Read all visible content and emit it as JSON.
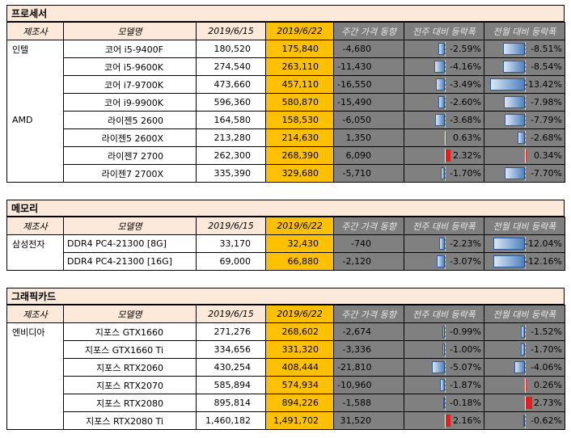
{
  "headers": [
    "제조사",
    "모델명",
    "2019/6/15",
    "2019/6/22",
    "주간 가격 동향",
    "전주 대비 등락폭",
    "전월 대비 등락폭"
  ],
  "sections": [
    {
      "title": "프로세서",
      "rows": [
        {
          "maker": "인텔",
          "model": "코어 i5-9400F",
          "p1": "180,520",
          "p2": "175,840",
          "weekly": "-4,680",
          "wow": "-2.59%",
          "mom": "-8.51%",
          "wow_v": -2.59,
          "mom_v": -8.51
        },
        {
          "maker": "",
          "model": "코어 i5-9600K",
          "p1": "274,540",
          "p2": "263,110",
          "weekly": "-11,430",
          "wow": "-4.16%",
          "mom": "-8.54%",
          "wow_v": -4.16,
          "mom_v": -8.54
        },
        {
          "maker": "",
          "model": "코어 i7-9700K",
          "p1": "473,660",
          "p2": "457,110",
          "weekly": "-16,550",
          "wow": "-3.49%",
          "mom": "-13.42%",
          "wow_v": -3.49,
          "mom_v": -13.42
        },
        {
          "maker": "",
          "model": "코어 i9-9900K",
          "p1": "596,360",
          "p2": "580,870",
          "weekly": "-15,490",
          "wow": "-2.60%",
          "mom": "-7.98%",
          "wow_v": -2.6,
          "mom_v": -7.98
        },
        {
          "maker": "AMD",
          "model": "라이젠5 2600",
          "p1": "164,580",
          "p2": "158,530",
          "weekly": "-6,050",
          "wow": "-3.68%",
          "mom": "-7.79%",
          "wow_v": -3.68,
          "mom_v": -7.79
        },
        {
          "maker": "",
          "model": "라이젠5 2600X",
          "p1": "213,280",
          "p2": "214,630",
          "weekly": "1,350",
          "wow": "0.63%",
          "mom": "-2.68%",
          "wow_v": 0.63,
          "mom_v": -2.68
        },
        {
          "maker": "",
          "model": "라이젠7 2700",
          "p1": "262,300",
          "p2": "268,390",
          "weekly": "6,090",
          "wow": "2.32%",
          "mom": "0.34%",
          "wow_v": 2.32,
          "mom_v": 0.34
        },
        {
          "maker": "",
          "model": "라이젠7 2700X",
          "p1": "335,390",
          "p2": "329,680",
          "weekly": "-5,710",
          "wow": "-1.70%",
          "mom": "-7.70%",
          "wow_v": -1.7,
          "mom_v": -7.7
        }
      ]
    },
    {
      "title": "메모리",
      "rows": [
        {
          "maker": "삼성전자",
          "model": "DDR4 PC4-21300 [8G]",
          "p1": "33,170",
          "p2": "32,430",
          "weekly": "-740",
          "wow": "-2.23%",
          "mom": "-12.04%",
          "wow_v": -2.23,
          "mom_v": -12.04
        },
        {
          "maker": "",
          "model": "DDR4 PC4-21300 [16G]",
          "p1": "69,000",
          "p2": "66,880",
          "weekly": "-2,120",
          "wow": "-3.07%",
          "mom": "-12.16%",
          "wow_v": -3.07,
          "mom_v": -12.16
        }
      ]
    },
    {
      "title": "그래픽카드",
      "rows": [
        {
          "maker": "엔비디아",
          "model": "지포스 GTX1660",
          "p1": "271,276",
          "p2": "268,602",
          "weekly": "-2,674",
          "wow": "-0.99%",
          "mom": "-1.52%",
          "wow_v": -0.99,
          "mom_v": -1.52
        },
        {
          "maker": "",
          "model": "지포스 GTX1660 Ti",
          "p1": "334,656",
          "p2": "331,320",
          "weekly": "-3,336",
          "wow": "-1.00%",
          "mom": "-1.70%",
          "wow_v": -1.0,
          "mom_v": -1.7
        },
        {
          "maker": "",
          "model": "지포스 RTX2060",
          "p1": "430,254",
          "p2": "408,444",
          "weekly": "-21,810",
          "wow": "-5.07%",
          "mom": "-4.06%",
          "wow_v": -5.07,
          "mom_v": -4.06
        },
        {
          "maker": "",
          "model": "지포스 RTX2070",
          "p1": "585,894",
          "p2": "574,934",
          "weekly": "-10,960",
          "wow": "-1.87%",
          "mom": "0.26%",
          "wow_v": -1.87,
          "mom_v": 0.26
        },
        {
          "maker": "",
          "model": "지포스 RTX2080",
          "p1": "895,814",
          "p2": "894,226",
          "weekly": "-1,588",
          "wow": "-0.18%",
          "mom": "2.73%",
          "wow_v": -0.18,
          "mom_v": 2.73
        },
        {
          "maker": "",
          "model": "지포스 RTX2080 Ti",
          "p1": "1,460,182",
          "p2": "1,491,702",
          "weekly": "31,520",
          "wow": "2.16%",
          "mom": "-0.62%",
          "wow_v": 2.16,
          "mom_v": -0.62
        }
      ]
    }
  ],
  "colors": {
    "header_bg": "#fde9d9",
    "highlight": "#ffc000",
    "dark_cell": "#808080",
    "neg_bar": "#4f81bd",
    "pos_bar": "#e02020"
  }
}
